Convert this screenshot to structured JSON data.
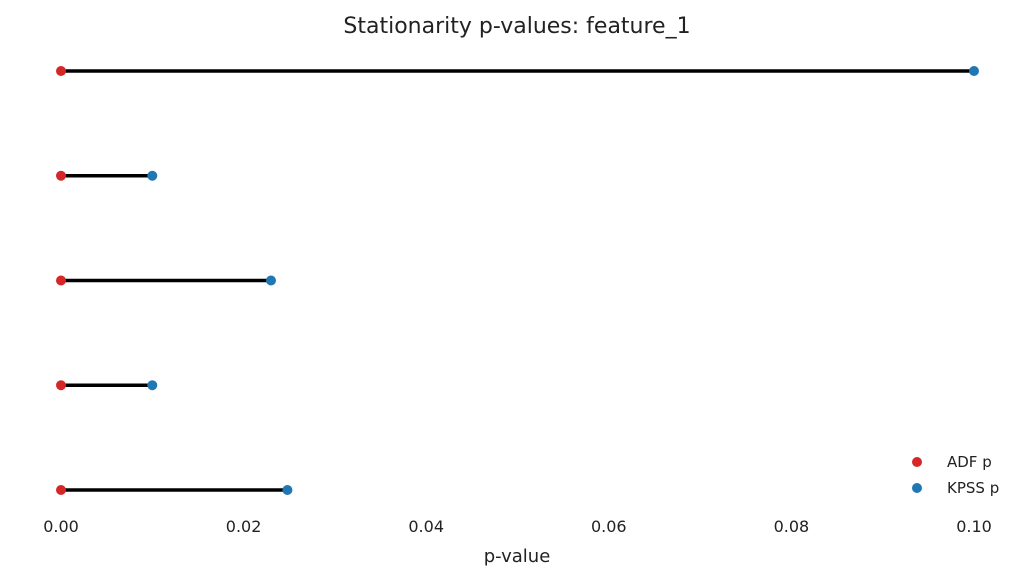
{
  "chart_data": {
    "type": "dumbbell",
    "title": "Stationarity p-values: feature_1",
    "xlabel": "p-value",
    "ylabel": "",
    "xlim": [
      0.0,
      0.1
    ],
    "xticks": [
      "0.00",
      "0.02",
      "0.04",
      "0.06",
      "0.08",
      "0.10"
    ],
    "grid": false,
    "legend_position": "bottom-right",
    "series": [
      {
        "name": "ADF p",
        "color": "#d62728",
        "values": [
          0.0,
          0.0,
          0.0,
          0.0,
          0.0
        ]
      },
      {
        "name": "KPSS p",
        "color": "#1f77b4",
        "values": [
          0.1,
          0.01,
          0.023,
          0.01,
          0.0248
        ]
      }
    ],
    "connector_color": "#000000"
  }
}
